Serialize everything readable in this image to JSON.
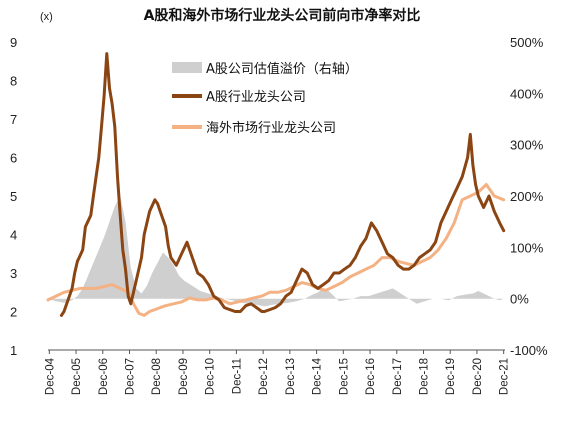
{
  "chart_data": {
    "type": "line",
    "title": "A股和海外市场行业龙头公司前向市净率对比",
    "left_axis_unit": "(x)",
    "left_axis": {
      "min": 1,
      "max": 9,
      "ticks": [
        "1",
        "2",
        "3",
        "4",
        "5",
        "6",
        "7",
        "8",
        "9"
      ]
    },
    "right_axis": {
      "min": -100,
      "max": 500,
      "ticks": [
        "-100%",
        "0%",
        "100%",
        "200%",
        "300%",
        "400%",
        "500%"
      ]
    },
    "x_ticks": [
      "Dec-04",
      "Dec-05",
      "Dec-06",
      "Dec-07",
      "Dec-08",
      "Dec-09",
      "Dec-10",
      "Dec-11",
      "Dec-12",
      "Dec-13",
      "Dec-14",
      "Dec-15",
      "Dec-16",
      "Dec-17",
      "Dec-18",
      "Dec-19",
      "Dec-20",
      "Dec-21"
    ],
    "legend_position": "top-center",
    "colors": {
      "premium": "#cfcfcf",
      "a_share": "#8b4513",
      "overseas": "#f4b183"
    },
    "series": [
      {
        "name": "A股公司估值溢价（右轴）",
        "axis": "right",
        "style": "area",
        "x": [
          2004.9,
          2005.2,
          2005.5,
          2005.8,
          2006.0,
          2006.2,
          2006.4,
          2006.6,
          2006.8,
          2007.0,
          2007.2,
          2007.4,
          2007.6,
          2007.8,
          2008.0,
          2008.2,
          2008.4,
          2008.6,
          2008.8,
          2009.0,
          2009.2,
          2009.4,
          2009.6,
          2009.8,
          2010.0,
          2010.3,
          2010.6,
          2010.9,
          2011.2,
          2011.5,
          2011.8,
          2012.1,
          2012.4,
          2012.7,
          2013.0,
          2013.3,
          2013.6,
          2013.9,
          2014.2,
          2014.5,
          2014.8,
          2015.0,
          2015.2,
          2015.4,
          2015.6,
          2015.8,
          2016.0,
          2016.3,
          2016.6,
          2016.9,
          2017.2,
          2017.5,
          2017.8,
          2018.1,
          2018.4,
          2018.7,
          2019.0,
          2019.3,
          2019.6,
          2019.9,
          2020.2,
          2020.5,
          2020.8,
          2021.0,
          2021.2,
          2021.4,
          2021.6,
          2021.8,
          2021.95
        ],
        "values": [
          0,
          -5,
          -8,
          -3,
          5,
          20,
          45,
          70,
          95,
          120,
          150,
          180,
          200,
          150,
          60,
          20,
          10,
          25,
          50,
          70,
          90,
          80,
          65,
          45,
          35,
          25,
          15,
          10,
          5,
          0,
          -3,
          -8,
          -10,
          -12,
          -15,
          -12,
          -10,
          -8,
          -5,
          0,
          8,
          12,
          20,
          15,
          5,
          -5,
          -3,
          0,
          5,
          5,
          10,
          15,
          20,
          10,
          0,
          -10,
          -5,
          0,
          0,
          -3,
          5,
          8,
          10,
          15,
          10,
          5,
          0,
          -3,
          0
        ]
      },
      {
        "name": "A股行业龙头公司",
        "axis": "left",
        "style": "line",
        "x": [
          2005.4,
          2005.5,
          2005.6,
          2005.8,
          2005.9,
          2006.0,
          2006.2,
          2006.3,
          2006.5,
          2006.6,
          2006.8,
          2006.9,
          2007.0,
          2007.1,
          2007.2,
          2007.3,
          2007.4,
          2007.5,
          2007.6,
          2007.7,
          2007.8,
          2007.9,
          2008.0,
          2008.2,
          2008.4,
          2008.5,
          2008.7,
          2008.9,
          2009.0,
          2009.1,
          2009.3,
          2009.4,
          2009.5,
          2009.7,
          2009.9,
          2010.1,
          2010.3,
          2010.5,
          2010.7,
          2010.9,
          2011.1,
          2011.3,
          2011.5,
          2011.7,
          2011.9,
          2012.1,
          2012.3,
          2012.5,
          2012.7,
          2012.9,
          2013.0,
          2013.2,
          2013.4,
          2013.6,
          2013.8,
          2014.0,
          2014.2,
          2014.4,
          2014.6,
          2014.8,
          2015.0,
          2015.2,
          2015.4,
          2015.5,
          2015.6,
          2015.8,
          2016.0,
          2016.2,
          2016.4,
          2016.6,
          2016.8,
          2017.0,
          2017.2,
          2017.4,
          2017.6,
          2017.8,
          2018.0,
          2018.2,
          2018.4,
          2018.6,
          2018.8,
          2019.0,
          2019.2,
          2019.4,
          2019.6,
          2019.8,
          2020.0,
          2020.2,
          2020.4,
          2020.6,
          2020.7,
          2020.8,
          2020.9,
          2021.0,
          2021.2,
          2021.4,
          2021.6,
          2021.8,
          2021.95
        ],
        "values": [
          1.9,
          2.0,
          2.2,
          2.6,
          3.0,
          3.3,
          3.6,
          4.2,
          4.5,
          5.0,
          6.0,
          6.8,
          7.6,
          8.7,
          7.8,
          7.4,
          6.8,
          5.5,
          4.5,
          3.6,
          3.1,
          2.4,
          2.2,
          2.8,
          3.4,
          4.0,
          4.6,
          4.9,
          4.8,
          4.6,
          4.2,
          3.7,
          3.4,
          3.2,
          3.5,
          3.8,
          3.4,
          3.0,
          2.9,
          2.7,
          2.4,
          2.3,
          2.1,
          2.05,
          2.0,
          2.0,
          2.15,
          2.2,
          2.1,
          2.0,
          2.0,
          2.05,
          2.1,
          2.2,
          2.4,
          2.5,
          2.8,
          3.1,
          3.0,
          2.7,
          2.6,
          2.7,
          2.8,
          2.9,
          3.0,
          3.0,
          3.1,
          3.2,
          3.4,
          3.7,
          3.9,
          4.3,
          4.1,
          3.8,
          3.5,
          3.4,
          3.2,
          3.1,
          3.1,
          3.2,
          3.4,
          3.5,
          3.6,
          3.8,
          4.3,
          4.6,
          4.9,
          5.2,
          5.5,
          6.0,
          6.6,
          5.8,
          5.3,
          5.0,
          4.7,
          5.0,
          4.6,
          4.3,
          4.1
        ]
      },
      {
        "name": "海外市场行业龙头公司",
        "axis": "left",
        "style": "line",
        "x": [
          2004.9,
          2005.2,
          2005.5,
          2005.8,
          2006.1,
          2006.4,
          2006.7,
          2007.0,
          2007.3,
          2007.6,
          2007.9,
          2008.1,
          2008.3,
          2008.5,
          2008.7,
          2008.9,
          2009.1,
          2009.3,
          2009.6,
          2009.9,
          2010.2,
          2010.5,
          2010.8,
          2011.1,
          2011.4,
          2011.7,
          2012.0,
          2012.3,
          2012.6,
          2012.9,
          2013.2,
          2013.5,
          2013.8,
          2014.1,
          2014.4,
          2014.7,
          2015.0,
          2015.3,
          2015.6,
          2015.9,
          2016.2,
          2016.5,
          2016.8,
          2017.1,
          2017.4,
          2017.7,
          2018.0,
          2018.3,
          2018.6,
          2018.9,
          2019.2,
          2019.5,
          2019.8,
          2020.1,
          2020.4,
          2020.7,
          2021.0,
          2021.3,
          2021.6,
          2021.95
        ],
        "values": [
          2.3,
          2.4,
          2.5,
          2.55,
          2.6,
          2.6,
          2.6,
          2.65,
          2.7,
          2.6,
          2.5,
          2.2,
          1.95,
          1.9,
          2.0,
          2.05,
          2.1,
          2.15,
          2.2,
          2.25,
          2.35,
          2.3,
          2.3,
          2.35,
          2.3,
          2.2,
          2.25,
          2.3,
          2.35,
          2.4,
          2.5,
          2.5,
          2.55,
          2.65,
          2.75,
          2.7,
          2.6,
          2.55,
          2.65,
          2.75,
          2.9,
          3.0,
          3.1,
          3.2,
          3.4,
          3.4,
          3.3,
          3.25,
          3.2,
          3.3,
          3.4,
          3.6,
          3.9,
          4.3,
          4.9,
          5.0,
          5.1,
          5.3,
          5.0,
          4.9
        ]
      }
    ]
  }
}
